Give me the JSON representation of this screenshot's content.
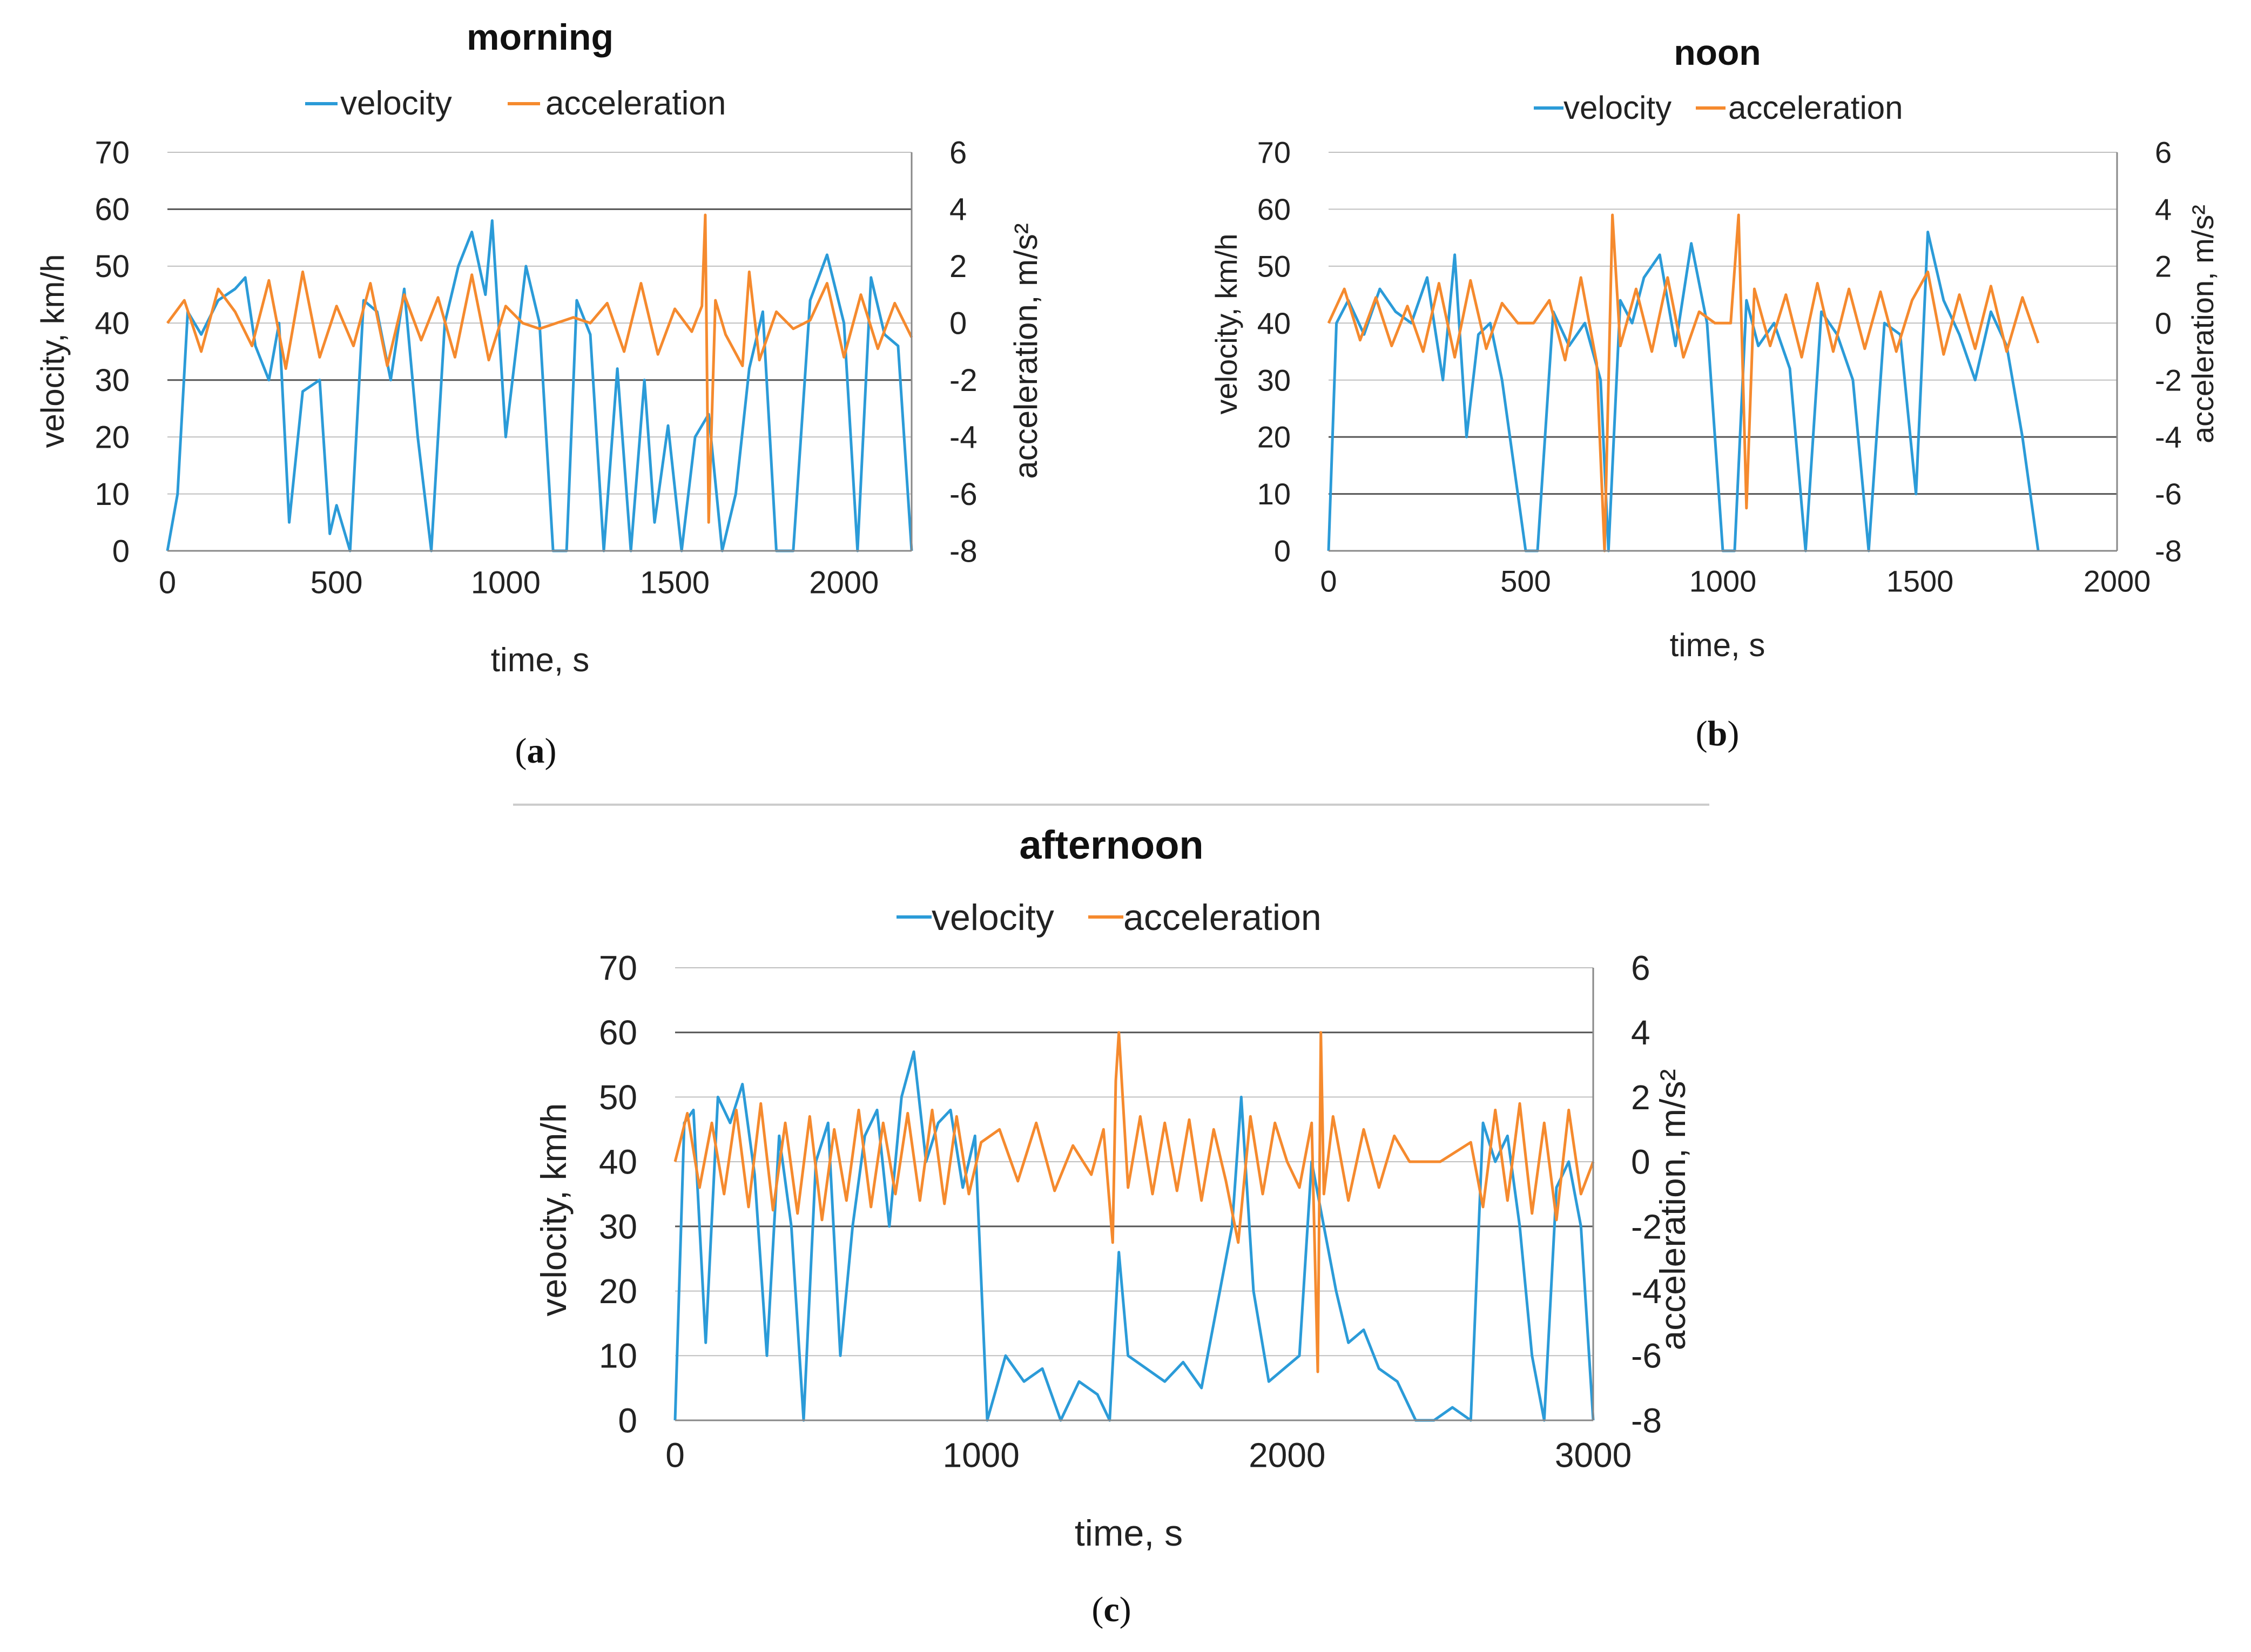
{
  "colors": {
    "velocity": "#2b9bd8",
    "acceleration": "#f58a2e",
    "grid": "#bfbfbf",
    "grid_major": "#555555",
    "axis": "#888888"
  },
  "captions": [
    {
      "open": "(",
      "letter": "a",
      "close": ")"
    },
    {
      "open": "(",
      "letter": "b",
      "close": ")"
    },
    {
      "open": "(",
      "letter": "c",
      "close": ")"
    }
  ],
  "chart_data": [
    {
      "id": "a",
      "type": "line",
      "title": "morning",
      "xlabel": "time, s",
      "ylabel": "velocity, km/h",
      "y2label": "acceleration, m/s²",
      "xlim": [
        0,
        2200
      ],
      "ylim": [
        0,
        70
      ],
      "y2lim": [
        -8,
        6
      ],
      "xticks": [
        "0",
        "500",
        "1000",
        "1500",
        "2000"
      ],
      "yticks": [
        "0",
        "10",
        "20",
        "30",
        "40",
        "50",
        "60",
        "70"
      ],
      "y2ticks": [
        "-8",
        "-6",
        "-4",
        "-2",
        "0",
        "2",
        "4",
        "6"
      ],
      "legend": [
        "velocity",
        "acceleration"
      ],
      "legend_position": "top",
      "series": [
        {
          "name": "velocity",
          "axis": "left",
          "x": [
            0,
            30,
            60,
            100,
            150,
            200,
            230,
            260,
            300,
            330,
            360,
            400,
            450,
            480,
            500,
            540,
            580,
            620,
            660,
            700,
            740,
            780,
            820,
            860,
            900,
            940,
            960,
            1000,
            1060,
            1100,
            1140,
            1180,
            1210,
            1250,
            1290,
            1330,
            1370,
            1410,
            1440,
            1480,
            1520,
            1560,
            1600,
            1640,
            1680,
            1720,
            1760,
            1800,
            1850,
            1900,
            1950,
            2000,
            2040,
            2080,
            2120,
            2160,
            2200
          ],
          "values": [
            0,
            10,
            42,
            38,
            44,
            46,
            48,
            36,
            30,
            40,
            5,
            28,
            30,
            3,
            8,
            0,
            44,
            42,
            30,
            46,
            20,
            0,
            40,
            50,
            56,
            45,
            58,
            20,
            50,
            40,
            0,
            0,
            44,
            38,
            0,
            32,
            0,
            30,
            5,
            22,
            0,
            20,
            24,
            0,
            10,
            32,
            42,
            0,
            0,
            44,
            52,
            40,
            0,
            48,
            38,
            36,
            0
          ]
        },
        {
          "name": "acceleration",
          "axis": "right",
          "x": [
            0,
            50,
            100,
            150,
            200,
            250,
            300,
            350,
            400,
            450,
            500,
            550,
            600,
            650,
            700,
            750,
            800,
            850,
            900,
            950,
            1000,
            1050,
            1100,
            1150,
            1200,
            1250,
            1300,
            1350,
            1400,
            1450,
            1500,
            1550,
            1580,
            1590,
            1600,
            1620,
            1650,
            1700,
            1720,
            1750,
            1800,
            1850,
            1900,
            1950,
            2000,
            2050,
            2100,
            2150,
            2200
          ],
          "values": [
            0,
            0.8,
            -1,
            1.2,
            0.4,
            -0.8,
            1.5,
            -1.6,
            1.8,
            -1.2,
            0.6,
            -0.8,
            1.4,
            -1.5,
            1.0,
            -0.6,
            0.9,
            -1.2,
            1.7,
            -1.3,
            0.6,
            0,
            -0.2,
            0,
            0.2,
            0,
            0.7,
            -1.0,
            1.4,
            -1.1,
            0.5,
            -0.3,
            0.6,
            3.8,
            -7,
            0.8,
            -0.4,
            -1.5,
            1.8,
            -1.3,
            0.4,
            -0.2,
            0.1,
            1.4,
            -1.2,
            1.0,
            -0.9,
            0.7,
            -0.5
          ]
        }
      ]
    },
    {
      "id": "b",
      "type": "line",
      "title": "noon",
      "xlabel": "time, s",
      "ylabel": "velocity, km/h",
      "y2label": "acceleration, m/s²",
      "xlim": [
        0,
        2000
      ],
      "ylim": [
        0,
        70
      ],
      "y2lim": [
        -8,
        6
      ],
      "xticks": [
        "0",
        "500",
        "1000",
        "1500",
        "2000"
      ],
      "yticks": [
        "0",
        "10",
        "20",
        "30",
        "40",
        "50",
        "60",
        "70"
      ],
      "y2ticks": [
        "-8",
        "-6",
        "-4",
        "-2",
        "0",
        "2",
        "4",
        "6"
      ],
      "legend": [
        "velocity",
        "acceleration"
      ],
      "legend_position": "top",
      "series": [
        {
          "name": "velocity",
          "axis": "left",
          "x": [
            0,
            20,
            50,
            90,
            130,
            170,
            210,
            250,
            290,
            320,
            350,
            380,
            410,
            440,
            500,
            530,
            570,
            610,
            650,
            690,
            710,
            740,
            770,
            800,
            840,
            880,
            920,
            960,
            1000,
            1030,
            1060,
            1090,
            1130,
            1170,
            1210,
            1250,
            1290,
            1330,
            1370,
            1410,
            1450,
            1490,
            1520,
            1560,
            1600,
            1640,
            1680,
            1720,
            1760,
            1800
          ],
          "values": [
            0,
            40,
            44,
            38,
            46,
            42,
            40,
            48,
            30,
            52,
            20,
            38,
            40,
            30,
            0,
            0,
            42,
            36,
            40,
            30,
            0,
            44,
            40,
            48,
            52,
            36,
            54,
            40,
            0,
            0,
            44,
            36,
            40,
            32,
            0,
            42,
            38,
            30,
            0,
            40,
            38,
            10,
            56,
            44,
            38,
            30,
            42,
            36,
            20,
            0
          ]
        },
        {
          "name": "acceleration",
          "axis": "right",
          "x": [
            0,
            40,
            80,
            120,
            160,
            200,
            240,
            280,
            320,
            360,
            400,
            440,
            480,
            520,
            560,
            600,
            640,
            680,
            700,
            720,
            740,
            780,
            820,
            860,
            900,
            940,
            980,
            1020,
            1040,
            1060,
            1080,
            1120,
            1160,
            1200,
            1240,
            1280,
            1320,
            1360,
            1400,
            1440,
            1480,
            1520,
            1560,
            1600,
            1640,
            1680,
            1720,
            1760,
            1800
          ],
          "values": [
            0,
            1.2,
            -0.6,
            0.9,
            -0.8,
            0.6,
            -1.0,
            1.4,
            -1.2,
            1.5,
            -0.9,
            0.7,
            0,
            0,
            0.8,
            -1.3,
            1.6,
            -1.4,
            -8,
            3.8,
            -0.8,
            1.2,
            -1.0,
            1.6,
            -1.2,
            0.4,
            0,
            0,
            3.8,
            -6.5,
            1.2,
            -0.8,
            1.0,
            -1.2,
            1.4,
            -1.0,
            1.2,
            -0.9,
            1.1,
            -1.0,
            0.8,
            1.8,
            -1.1,
            1.0,
            -0.9,
            1.3,
            -1.0,
            0.9,
            -0.7
          ]
        }
      ]
    },
    {
      "id": "c",
      "type": "line",
      "title": "afternoon",
      "xlabel": "time, s",
      "ylabel": "velocity, km/h",
      "y2label": "acceleration, m/s²",
      "xlim": [
        0,
        3000
      ],
      "ylim": [
        0,
        70
      ],
      "y2lim": [
        -8,
        6
      ],
      "xticks": [
        "0",
        "1000",
        "2000",
        "3000"
      ],
      "yticks": [
        "0",
        "10",
        "20",
        "30",
        "40",
        "50",
        "60",
        "70"
      ],
      "y2ticks": [
        "-8",
        "-6",
        "-4",
        "-2",
        "0",
        "2",
        "4",
        "6"
      ],
      "legend": [
        "velocity",
        "acceleration"
      ],
      "legend_position": "top",
      "series": [
        {
          "name": "velocity",
          "axis": "left",
          "x": [
            0,
            30,
            60,
            100,
            140,
            180,
            220,
            260,
            300,
            340,
            380,
            420,
            460,
            500,
            540,
            580,
            620,
            660,
            700,
            740,
            780,
            820,
            860,
            900,
            940,
            980,
            1020,
            1080,
            1140,
            1200,
            1260,
            1320,
            1380,
            1420,
            1450,
            1480,
            1540,
            1600,
            1660,
            1720,
            1780,
            1820,
            1850,
            1890,
            1940,
            1990,
            2040,
            2080,
            2120,
            2160,
            2200,
            2250,
            2300,
            2360,
            2420,
            2480,
            2540,
            2600,
            2640,
            2680,
            2720,
            2760,
            2800,
            2840,
            2880,
            2920,
            2960,
            3000
          ],
          "values": [
            0,
            46,
            48,
            12,
            50,
            46,
            52,
            38,
            10,
            44,
            30,
            0,
            40,
            46,
            10,
            30,
            44,
            48,
            30,
            50,
            57,
            40,
            46,
            48,
            36,
            44,
            0,
            10,
            6,
            8,
            0,
            6,
            4,
            0,
            26,
            10,
            8,
            6,
            9,
            5,
            20,
            30,
            50,
            20,
            6,
            8,
            10,
            40,
            30,
            20,
            12,
            14,
            8,
            6,
            0,
            0,
            2,
            0,
            46,
            40,
            44,
            30,
            10,
            0,
            36,
            40,
            30,
            0
          ]
        },
        {
          "name": "acceleration",
          "axis": "right",
          "x": [
            0,
            40,
            80,
            120,
            160,
            200,
            240,
            280,
            320,
            360,
            400,
            440,
            480,
            520,
            560,
            600,
            640,
            680,
            720,
            760,
            800,
            840,
            880,
            920,
            960,
            1000,
            1060,
            1120,
            1180,
            1240,
            1300,
            1360,
            1400,
            1430,
            1440,
            1450,
            1480,
            1520,
            1560,
            1600,
            1640,
            1680,
            1720,
            1760,
            1800,
            1840,
            1880,
            1920,
            1960,
            2000,
            2040,
            2080,
            2100,
            2110,
            2120,
            2150,
            2200,
            2250,
            2300,
            2350,
            2400,
            2500,
            2600,
            2640,
            2680,
            2720,
            2760,
            2800,
            2840,
            2880,
            2920,
            2960,
            3000
          ],
          "values": [
            0,
            1.5,
            -0.8,
            1.2,
            -1.0,
            1.6,
            -1.4,
            1.8,
            -1.5,
            1.2,
            -1.6,
            1.4,
            -1.8,
            1.0,
            -1.2,
            1.6,
            -1.4,
            1.2,
            -1.0,
            1.5,
            -1.2,
            1.6,
            -1.3,
            1.4,
            -1.0,
            0.6,
            1.0,
            -0.6,
            1.2,
            -0.9,
            0.5,
            -0.4,
            1.0,
            -2.5,
            2.5,
            4.0,
            -0.8,
            1.4,
            -1.0,
            1.2,
            -0.9,
            1.3,
            -1.2,
            1.0,
            -0.6,
            -2.5,
            1.4,
            -1.0,
            1.2,
            0,
            -0.8,
            1.2,
            -6.5,
            4.0,
            -1.0,
            1.4,
            -1.2,
            1.0,
            -0.8,
            0.8,
            0,
            0,
            0.6,
            -1.4,
            1.6,
            -1.2,
            1.8,
            -1.6,
            1.2,
            -1.8,
            1.6,
            -1.0,
            0
          ]
        }
      ]
    }
  ]
}
